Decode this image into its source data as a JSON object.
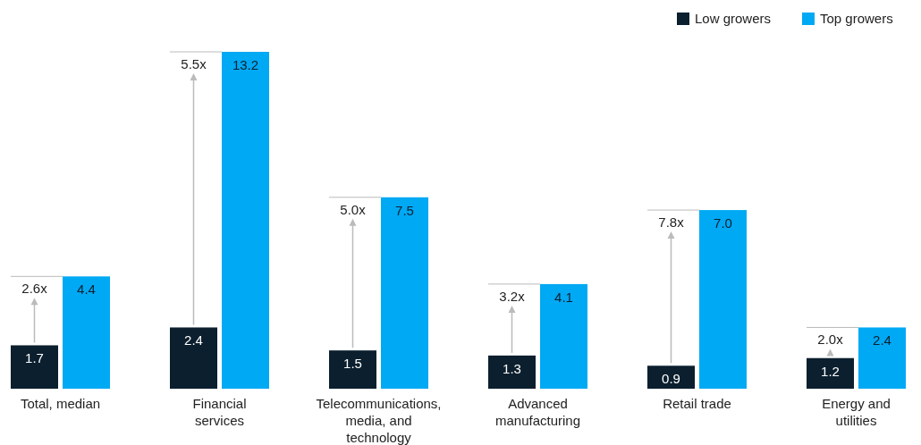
{
  "chart_data": {
    "type": "bar",
    "categories": [
      "Total, median",
      "Financial services",
      "Telecommunications, media, and technology",
      "Advanced manufacturing",
      "Retail trade",
      "Energy and utilities"
    ],
    "series": [
      {
        "name": "Low growers",
        "color": "#0b1f2e",
        "values": [
          1.7,
          2.4,
          1.5,
          1.3,
          0.9,
          1.2
        ],
        "value_labels": [
          "1.7",
          "2.4",
          "1.5",
          "1.3",
          "0.9",
          "1.2"
        ]
      },
      {
        "name": "Top growers",
        "color": "#00a9f4",
        "values": [
          4.4,
          13.2,
          7.5,
          4.1,
          7.0,
          2.4
        ],
        "value_labels": [
          "4.4",
          "13.2",
          "7.5",
          "4.1",
          "7.0",
          "2.4"
        ]
      }
    ],
    "legend": "top right",
    "annotations": [
      {
        "text": "2.6x",
        "x": "Total, median",
        "y": 4.4
      },
      {
        "text": "5.5x",
        "x": "Financial services",
        "y": 13.2
      },
      {
        "text": "5.0x",
        "x": "Telecommunications, media, and technology",
        "y": 7.5
      },
      {
        "text": "3.2x",
        "x": "Advanced manufacturing",
        "y": 4.1
      },
      {
        "text": "7.8x",
        "x": "Retail trade",
        "y": 7.0
      },
      {
        "text": "2.0x",
        "x": "Energy and utilities",
        "y": 2.4
      }
    ]
  }
}
